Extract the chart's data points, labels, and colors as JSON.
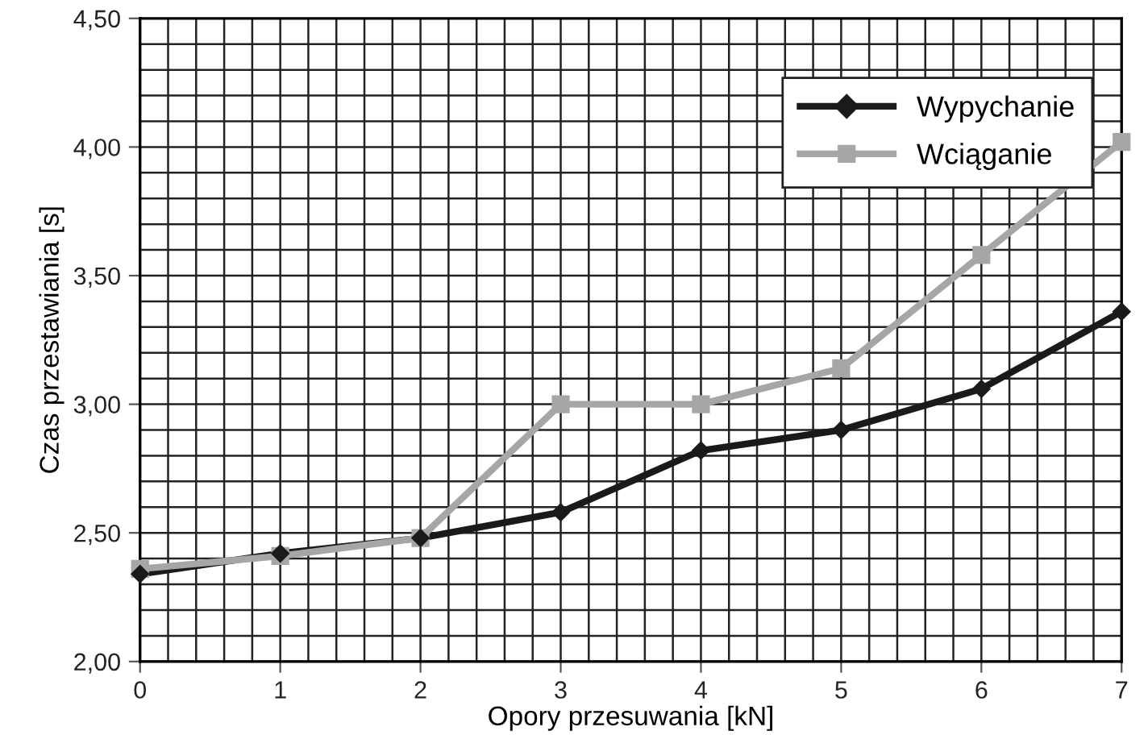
{
  "chart_data": {
    "type": "line",
    "xlabel": "Opory przesuwania [kN]",
    "ylabel": "Czas przestawiania [s]",
    "x": [
      0,
      1,
      2,
      3,
      4,
      5,
      6,
      7
    ],
    "series": [
      {
        "name": "Wypychanie",
        "color": "#1a1a1a",
        "marker": "diamond",
        "values": [
          2.34,
          2.42,
          2.48,
          2.58,
          2.82,
          2.9,
          3.06,
          3.36
        ]
      },
      {
        "name": "Wciąganie",
        "color": "#a6a6a6",
        "marker": "square",
        "values": [
          2.36,
          2.41,
          2.48,
          3.0,
          3.0,
          3.14,
          3.58,
          4.02
        ]
      }
    ],
    "xlim": [
      0,
      7
    ],
    "xticks": [
      0,
      1,
      2,
      3,
      4,
      5,
      6,
      7
    ],
    "ylim": [
      2.0,
      4.5
    ],
    "yticks": [
      {
        "value": 2.0,
        "label": "2,00"
      },
      {
        "value": 2.5,
        "label": "2,50"
      },
      {
        "value": 3.0,
        "label": "3,00"
      },
      {
        "value": 3.5,
        "label": "3,50"
      },
      {
        "value": 4.0,
        "label": "4,00"
      },
      {
        "value": 4.5,
        "label": "4,50"
      }
    ],
    "grid": true,
    "legend": "top right",
    "line_style": "solid"
  }
}
